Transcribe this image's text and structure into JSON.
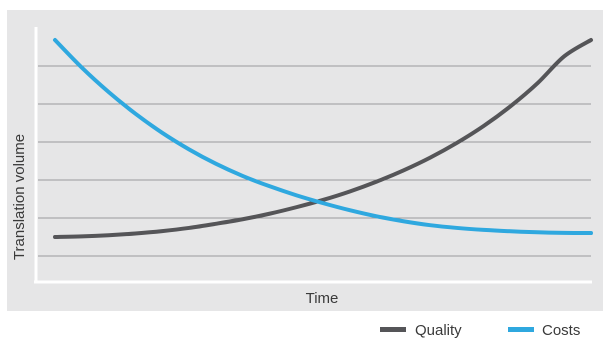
{
  "chart_data": {
    "type": "line",
    "title": "",
    "xlabel": "Time",
    "ylabel": "Translation volume",
    "xlim": [
      0,
      1
    ],
    "ylim": [
      0,
      1
    ],
    "grid": true,
    "legend_position": "bottom-right",
    "x": [
      0,
      0.05,
      0.1,
      0.15,
      0.2,
      0.25,
      0.3,
      0.35,
      0.4,
      0.45,
      0.5,
      0.55,
      0.6,
      0.65,
      0.7,
      0.75,
      0.8,
      0.85,
      0.9,
      0.95,
      1.0
    ],
    "series": [
      {
        "name": "Quality",
        "color": "#555558",
        "values": [
          0.0,
          0.003,
          0.009,
          0.018,
          0.03,
          0.046,
          0.067,
          0.09,
          0.118,
          0.151,
          0.188,
          0.231,
          0.281,
          0.338,
          0.403,
          0.478,
          0.564,
          0.664,
          0.78,
          0.917,
          1.0
        ]
      },
      {
        "name": "Costs",
        "color": "#2fa8df",
        "values": [
          1.0,
          0.86,
          0.736,
          0.626,
          0.529,
          0.445,
          0.372,
          0.31,
          0.258,
          0.212,
          0.172,
          0.136,
          0.105,
          0.08,
          0.06,
          0.046,
          0.036,
          0.029,
          0.024,
          0.021,
          0.02
        ]
      }
    ]
  }
}
